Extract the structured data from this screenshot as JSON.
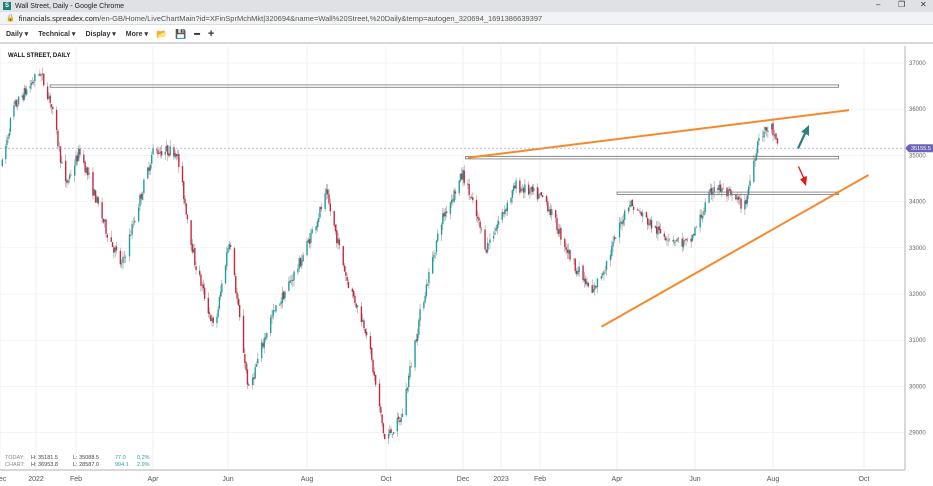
{
  "window": {
    "title": "Wall Street, Daily - Google Chrome",
    "url_domain": "financials.spreadex.com",
    "url_path": "/en-GB/Home/LiveChartMain?id=XFinSprMchMkt|320694&name=Wall%20Street,%20Daily&temp=autogen_320694_1691386639397"
  },
  "toolbar": {
    "daily": "Daily ▾",
    "technical": "Technical ▾",
    "display": "Display ▾",
    "more": "More ▾",
    "icons": [
      "folder-open-icon",
      "save-icon",
      "zoom-out-icon",
      "zoom-in-icon"
    ]
  },
  "stats": {
    "today": {
      "label": "TODAY:",
      "high": "H: 35181.5",
      "low": "L: 35088.5",
      "change": "77.0",
      "pct": "0.2%"
    },
    "chart": {
      "label": "CHART:",
      "high": "H: 36953.8",
      "low": "L: 28587.0",
      "change": "994.1",
      "pct": "2.9%"
    }
  },
  "chart_data": {
    "type": "candlestick",
    "title": "WALL STREET, DAILY",
    "colors": {
      "up": "#1f9e9e",
      "down": "#c8283c",
      "trendline": "#f7892b",
      "level": "#888888",
      "current_price": "#6b63b5",
      "arrow_up": "#2a8080",
      "arrow_down": "#e01818"
    },
    "current_price": 35155.5,
    "current_price_label": "35155.5",
    "ylim": [
      28200,
      37200
    ],
    "y_ticks": [
      37000,
      36000,
      35000,
      34000,
      33000,
      32000,
      31000,
      30000,
      29000
    ],
    "y_tick_labels": [
      "37000",
      "36000",
      "35000",
      "34000",
      "33000",
      "32000",
      "31000",
      "30000",
      "29000"
    ],
    "x_ticks": [
      {
        "date": "2021-12-01",
        "label": "Dec"
      },
      {
        "date": "2022-01-01",
        "label": "2022"
      },
      {
        "date": "2022-02-01",
        "label": "Feb"
      },
      {
        "date": "2022-04-01",
        "label": "Apr"
      },
      {
        "date": "2022-06-01",
        "label": "Jun"
      },
      {
        "date": "2022-08-01",
        "label": "Aug"
      },
      {
        "date": "2022-10-01",
        "label": "Oct"
      },
      {
        "date": "2022-12-01",
        "label": "Dec"
      },
      {
        "date": "2023-01-01",
        "label": "2023"
      },
      {
        "date": "2023-02-01",
        "label": "Feb"
      },
      {
        "date": "2023-04-01",
        "label": "Apr"
      },
      {
        "date": "2023-06-01",
        "label": "Jun"
      },
      {
        "date": "2023-08-01",
        "label": "Aug"
      },
      {
        "date": "2023-10-01",
        "label": "Oct"
      }
    ],
    "approx_close_path": [
      [
        "2021-12-03",
        34800
      ],
      [
        "2021-12-12",
        36000
      ],
      [
        "2022-01-04",
        36800
      ],
      [
        "2022-01-12",
        36200
      ],
      [
        "2022-01-24",
        34350
      ],
      [
        "2022-02-04",
        35100
      ],
      [
        "2022-02-24",
        33400
      ],
      [
        "2022-03-08",
        32600
      ],
      [
        "2022-04-01",
        35100
      ],
      [
        "2022-04-20",
        35100
      ],
      [
        "2022-05-05",
        32700
      ],
      [
        "2022-05-21",
        31200
      ],
      [
        "2022-06-02",
        33200
      ],
      [
        "2022-06-17",
        29900
      ],
      [
        "2022-07-03",
        31400
      ],
      [
        "2022-07-27",
        32700
      ],
      [
        "2022-08-16",
        34150
      ],
      [
        "2022-09-01",
        32300
      ],
      [
        "2022-09-16",
        31200
      ],
      [
        "2022-09-30",
        28850
      ],
      [
        "2022-10-13",
        29300
      ],
      [
        "2022-10-29",
        31700
      ],
      [
        "2022-11-14",
        33600
      ],
      [
        "2022-12-01",
        34600
      ],
      [
        "2022-12-20",
        33000
      ],
      [
        "2023-01-13",
        34350
      ],
      [
        "2023-02-05",
        34050
      ],
      [
        "2023-02-25",
        32750
      ],
      [
        "2023-03-13",
        32000
      ],
      [
        "2023-03-25",
        32750
      ],
      [
        "2023-04-10",
        34000
      ],
      [
        "2023-05-03",
        33350
      ],
      [
        "2023-05-27",
        33050
      ],
      [
        "2023-06-16",
        34350
      ],
      [
        "2023-07-10",
        33900
      ],
      [
        "2023-07-21",
        35450
      ],
      [
        "2023-07-31",
        35600
      ],
      [
        "2023-08-04",
        35155
      ]
    ],
    "horizontal_levels": [
      {
        "price": 36500,
        "from": "2022-01-12",
        "to": "2023-09-14"
      },
      {
        "price": 34950,
        "from": "2022-12-03",
        "to": "2023-09-14"
      },
      {
        "price": 34180,
        "from": "2023-04-01",
        "to": "2023-09-14"
      }
    ],
    "trendlines": [
      {
        "from": [
          "2022-12-05",
          34950
        ],
        "to": [
          "2023-09-21",
          35980
        ]
      },
      {
        "from": [
          "2023-03-20",
          31290
        ],
        "to": [
          "2023-10-04",
          34575
        ]
      }
    ],
    "arrows": [
      {
        "direction": "up",
        "color": "arrow_up"
      },
      {
        "direction": "down",
        "color": "arrow_down"
      }
    ]
  }
}
